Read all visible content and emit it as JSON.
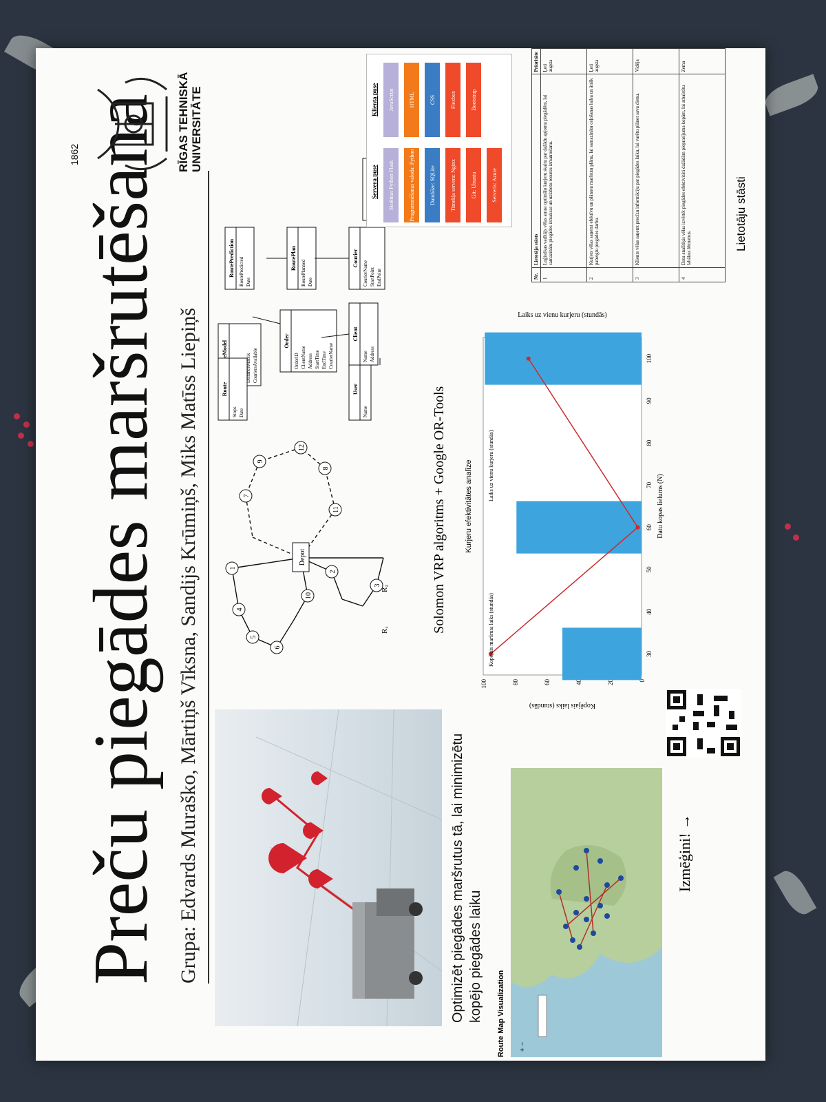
{
  "poster": {
    "title": "Preču piegādes maršrutēšana",
    "authors": "Grupa: Edvards Muraško, Mārtiņš Vīksna, Sandijs Krūmiņš, Miks Matīss Liepiņš",
    "logo": {
      "year": "1862",
      "name_line1": "RĪGAS TEHNISKĀ",
      "name_line2": "UNIVERSITĀTE"
    },
    "goal": "Optimizēt piegādes maršrutus tā, lai minimizētu kopējo piegādes laiku",
    "map_label": "Route Map Visualization",
    "try_label": "Izmēģini! →",
    "algorithm": "Solomon VRP algoritms + Google OR-Tools",
    "graph": {
      "depot": "Depot",
      "nodes": [
        "1",
        "2",
        "3",
        "4",
        "5",
        "6",
        "7",
        "8",
        "9",
        "10",
        "11",
        "12"
      ],
      "legend_r1": "R₁",
      "legend_r2": "R₂"
    },
    "db_tables": [
      {
        "name": "User",
        "fields": [
          "Name"
        ]
      },
      {
        "name": "Client",
        "fields": [
          "Name",
          "Address"
        ]
      },
      {
        "name": "Order",
        "fields": [
          "OrderID",
          "ClientName",
          "Address",
          "StartTime",
          "EndTime",
          "CourierName"
        ]
      },
      {
        "name": "RouteModel",
        "fields": [
          "Model",
          "Algorithm",
          "DistanceMatrix",
          "CouriersAvailable"
        ]
      },
      {
        "name": "Route",
        "fields": [
          "Stops",
          "Date"
        ]
      },
      {
        "name": "Courier",
        "fields": [
          "CourierName",
          "StartPoint",
          "EndPoint"
        ]
      },
      {
        "name": "RoutePlan",
        "fields": [
          "RoutePlanned",
          "Date"
        ]
      },
      {
        "name": "RoutePrediction",
        "fields": [
          "RoutePredicted",
          "Date"
        ]
      },
      {
        "name": "Depot",
        "fields": [
          "DepotID",
          "Address",
          "StartPoint",
          "EndPoint"
        ]
      }
    ],
    "stack": {
      "server_title": "Servera puse",
      "client_title": "Klienta puse",
      "server": [
        "Sistēmas Python Flask",
        "Programmēšanas valoda: Python",
        "Datubāze: SQLite",
        "Tīmekļa servera: Nginx",
        "Git: Ubuntu",
        "Serveris: Azure"
      ],
      "client": [
        "JavaScript",
        "HTML",
        "CSS",
        "Flexbox",
        "Bootstrap"
      ],
      "colors": {
        "server": [
          "#b7b0d8",
          "#f27a1a",
          "#3b7dc4",
          "#ef4a2a",
          "#ef4a2a",
          "#ef4a2a"
        ],
        "client": [
          "#b7b0d8",
          "#f27a1a",
          "#3b7dc4",
          "#ef4a2a",
          "#ef4a2a"
        ]
      }
    },
    "stories": {
      "headers": [
        "Nr.",
        "Lietotāja stāsts",
        "Prioritāte"
      ],
      "rows": [
        [
          "1",
          "Loģistikas vadītājs vēlas atrast optimālo kurjeru skaitu par dažādu apjomu piegādēm, lai samazinātu piegādes izmaksas un uzlabotu resursu izmantošanu.",
          "Ļoti augsta"
        ],
        [
          "2",
          "Kurjers vēlas saņemt efektīvu un plānotu maršrutu plānu, lai samazinātu ceļošanas laiku un ātrāk pabeigtu piegādes darbu.",
          "Ļoti augsta"
        ],
        [
          "3",
          "Klients vēlas saņemt precīzu informāciju par piegādes laiku, lai varētu plānot savu dienu.",
          "Vidēja"
        ],
        [
          "4",
          "Datu analītiķis vēlas izvērtēt piegādes efektivitāti dažādām pieprasījuma kopām, lai atbalstītu labākus lēmumus.",
          "Zema"
        ]
      ],
      "caption": "Lietotāju stāsti"
    }
  },
  "chart_data": {
    "type": "bar",
    "title": "Kurjeru efektivitātes analīze",
    "xlabel": "Datu kopas lielums (N)",
    "ylabel": "Kopējais laiks (stundās)",
    "y2label": "Laiks uz vienu kurjeru (stundās)",
    "categories": [
      "30",
      "60",
      "100"
    ],
    "x_ticks": [
      "30",
      "40",
      "50",
      "60",
      "70",
      "80",
      "90",
      "100"
    ],
    "y_ticks": [
      "0",
      "20",
      "40",
      "60",
      "80",
      "100"
    ],
    "legend": [
      "Kopējais maršruta laiks (stundās)",
      "Laiks uz vienu kurjeru (stundās)"
    ],
    "series": [
      {
        "name": "Kopējais maršruta laiks (stundās)",
        "values": [
          50,
          79,
          99
        ],
        "color": "#3ea4de"
      },
      {
        "name": "Laiks uz vienu kurjeru (stundās)",
        "values": [
          8.0,
          7.61,
          7.9
        ],
        "color": "#cc2b2b"
      }
    ],
    "ylim": [
      0,
      100
    ],
    "y2lim": [
      7.6,
      8.02
    ]
  }
}
